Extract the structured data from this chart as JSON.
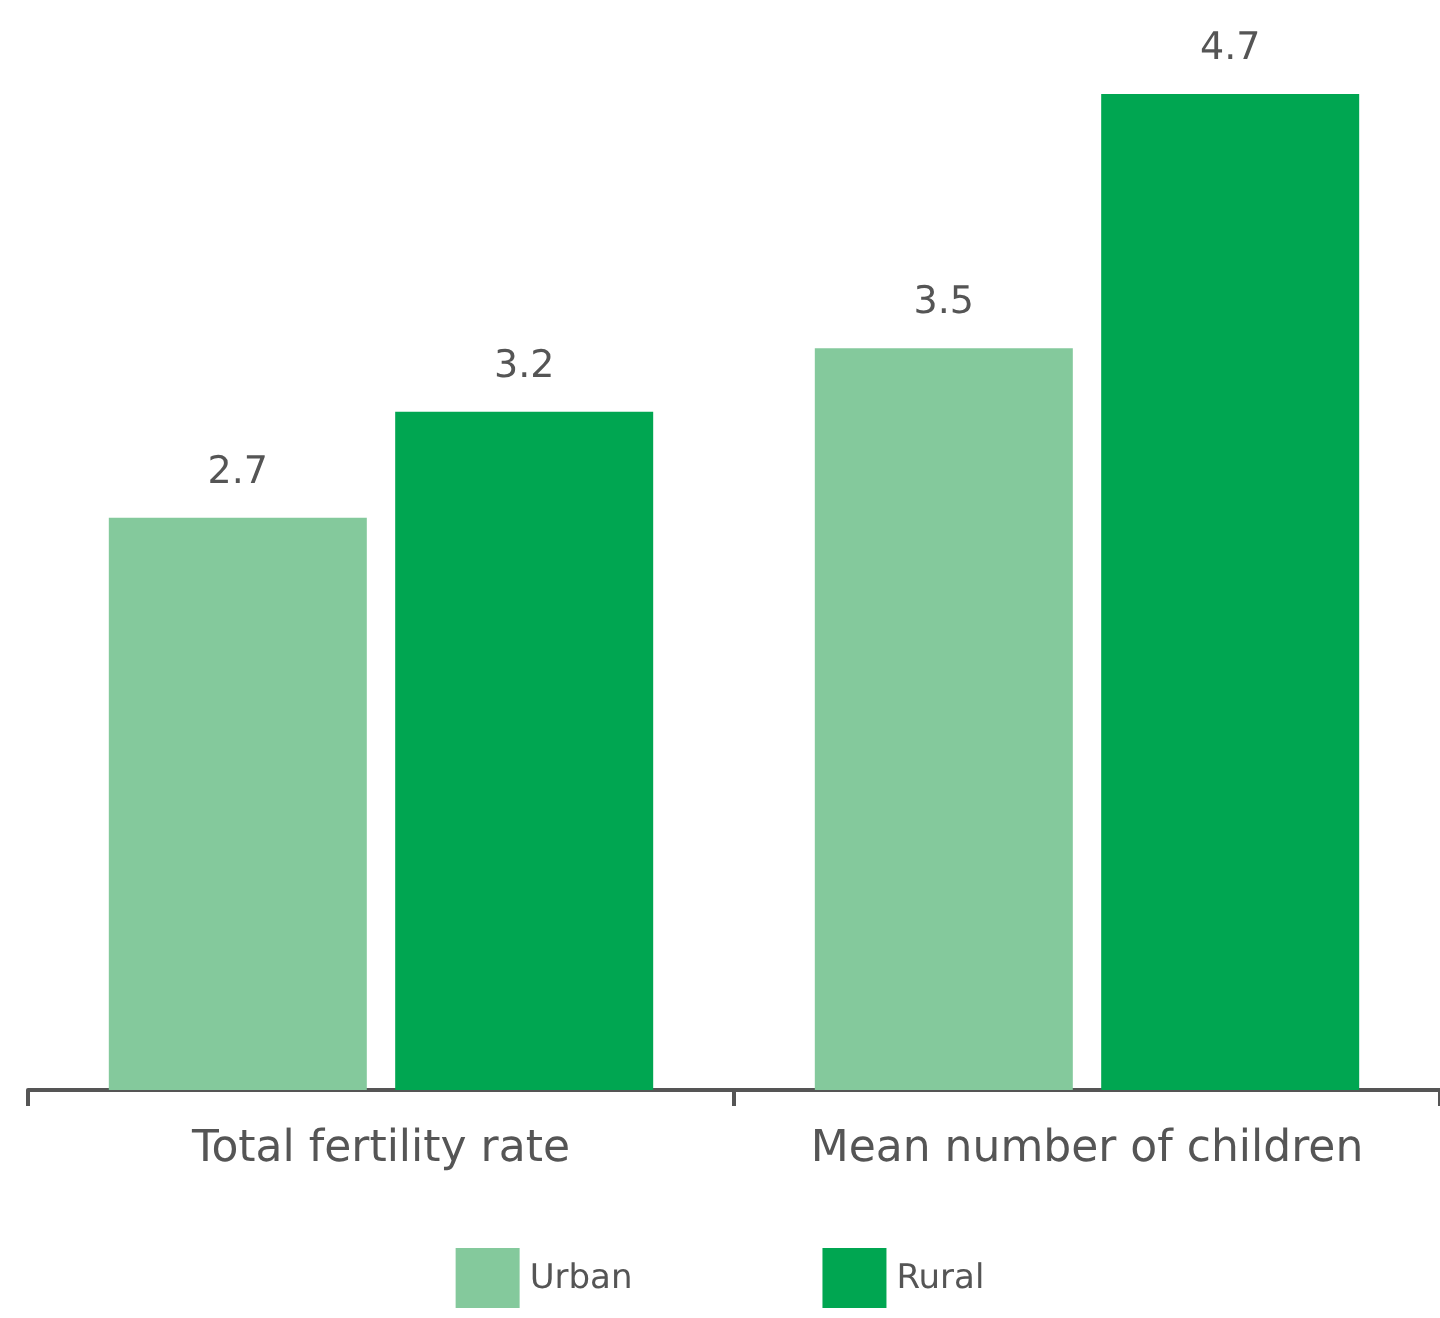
{
  "chart_data": {
    "type": "bar",
    "categories": [
      "Total fertility rate",
      "Mean number of children"
    ],
    "series": [
      {
        "name": "Urban",
        "color": "#84c99c",
        "values": [
          2.7,
          3.5
        ]
      },
      {
        "name": "Rural",
        "color": "#00a651",
        "values": [
          3.2,
          4.7
        ]
      }
    ],
    "data_labels": true,
    "legend": "bottom"
  }
}
